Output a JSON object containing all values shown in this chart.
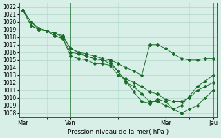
{
  "title": "Pression niveau de la mer( hPa )",
  "bg_color": "#d8efe8",
  "grid_color": "#b0d8c8",
  "line_color": "#1a6b2a",
  "marker_color": "#1a6b2a",
  "ylim": [
    1008,
    1022
  ],
  "yticks": [
    1008,
    1009,
    1010,
    1011,
    1012,
    1013,
    1014,
    1015,
    1016,
    1017,
    1018,
    1019,
    1020,
    1021,
    1022
  ],
  "day_labels": [
    "Mar",
    "Ven",
    "Mer",
    "Jeu"
  ],
  "day_positions": [
    0,
    6,
    18,
    24
  ],
  "series": [
    [
      1021.5,
      1020.0,
      1019.0,
      1018.8,
      1018.5,
      1018.2,
      1016.5,
      1016.0,
      1015.8,
      1015.5,
      1015.2,
      1015.0,
      1014.5,
      1014.0,
      1013.5,
      1013.0,
      1017.0,
      1017.0,
      1016.5,
      1015.8,
      1015.2,
      1015.0,
      1015.0,
      1015.2,
      1015.2
    ],
    [
      1021.5,
      1020.0,
      1019.2,
      1018.8,
      1018.5,
      1018.0,
      1016.5,
      1016.0,
      1015.5,
      1015.2,
      1015.0,
      1014.5,
      1013.5,
      1012.2,
      1010.8,
      1009.5,
      1009.3,
      1009.8,
      1009.5,
      1008.5,
      1008.0,
      1008.5,
      1009.0,
      1010.0,
      1011.0
    ],
    [
      1021.5,
      1019.5,
      1019.0,
      1018.8,
      1018.2,
      1017.8,
      1016.0,
      1015.8,
      1015.5,
      1015.2,
      1015.0,
      1014.8,
      1013.5,
      1012.0,
      1011.5,
      1010.5,
      1009.5,
      1009.5,
      1009.0,
      1008.5,
      1009.0,
      1010.2,
      1011.5,
      1012.2,
      1013.0
    ],
    [
      1021.5,
      1019.5,
      1019.0,
      1018.8,
      1018.2,
      1017.8,
      1015.5,
      1015.2,
      1015.0,
      1014.5,
      1014.5,
      1014.3,
      1013.0,
      1012.5,
      1012.0,
      1011.5,
      1010.8,
      1010.5,
      1009.8,
      1009.5,
      1009.5,
      1010.0,
      1011.0,
      1011.5,
      1012.0
    ]
  ]
}
